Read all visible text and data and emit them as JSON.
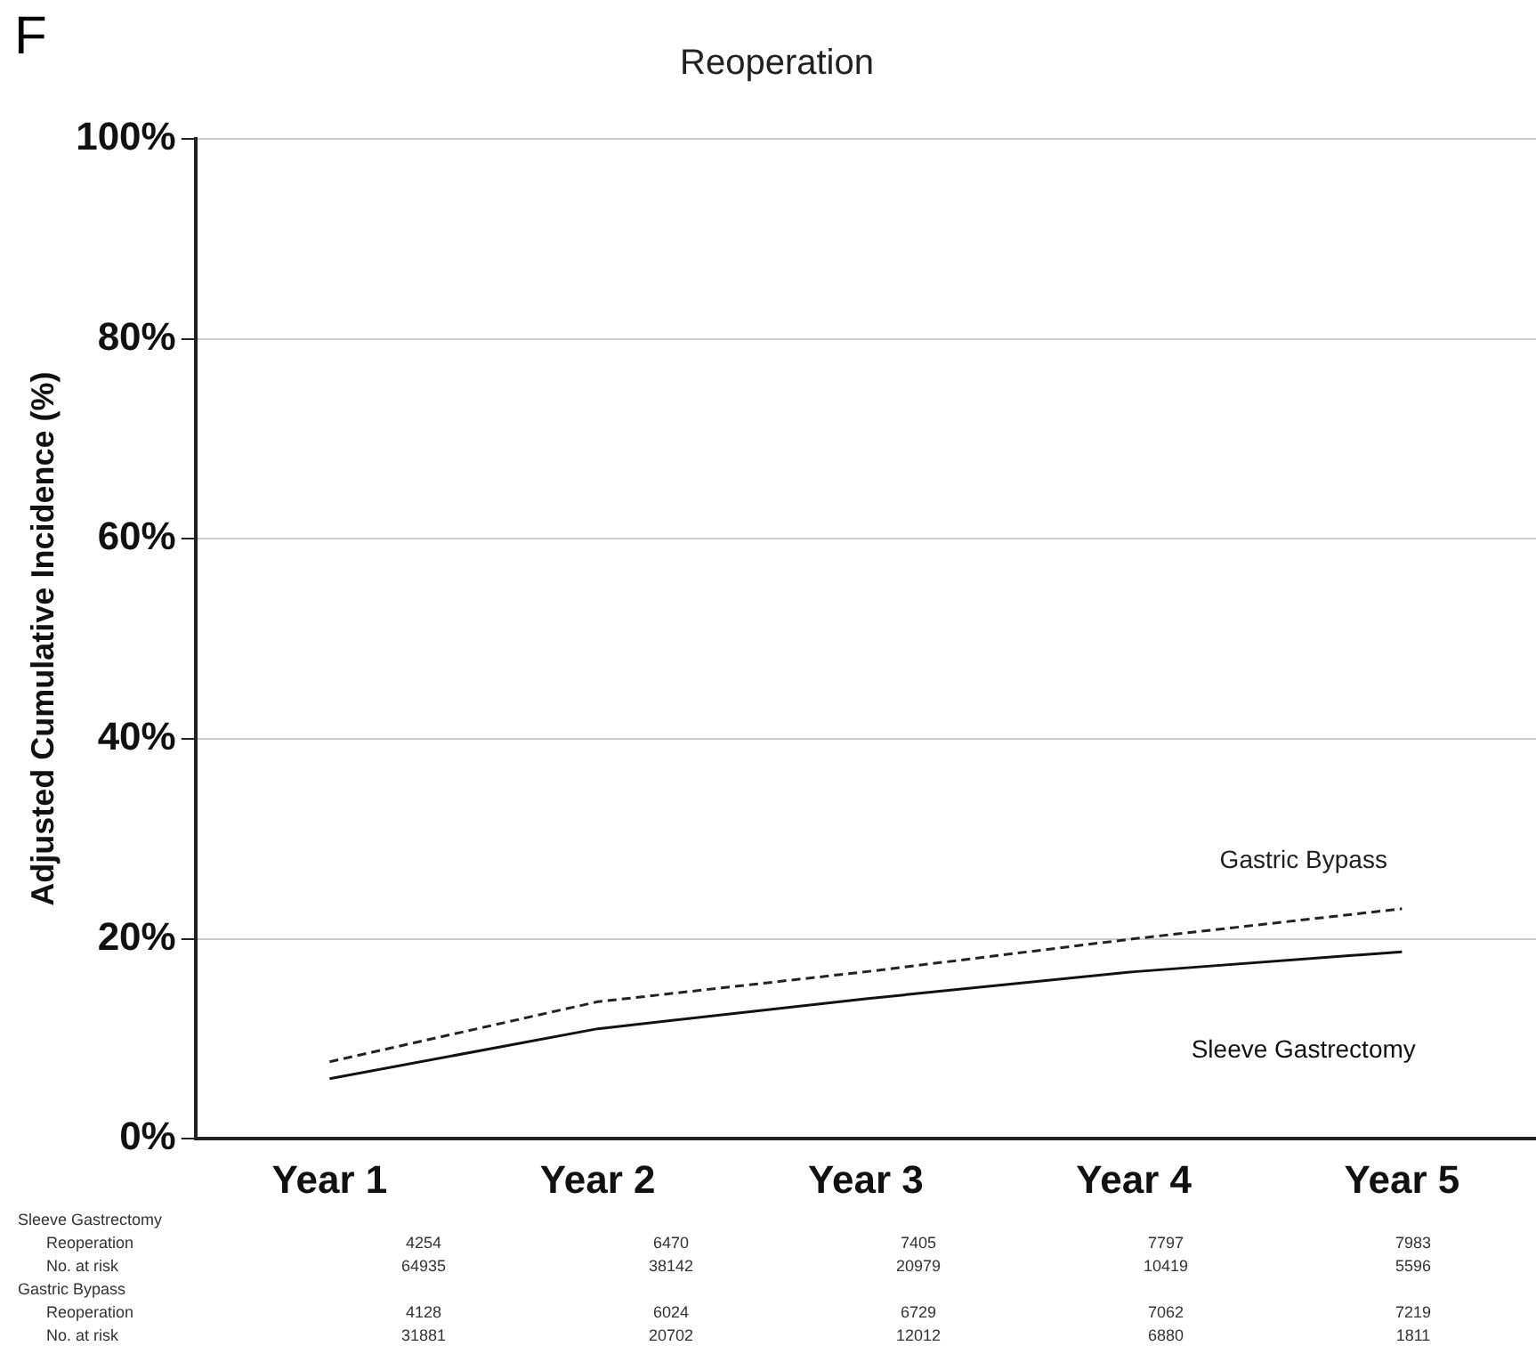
{
  "chart_data": {
    "type": "line",
    "title": "Reoperation",
    "ylabel": "Adjusted Cumulative Incidence (%)",
    "categories": [
      "Year 1",
      "Year 2",
      "Year 3",
      "Year 4",
      "Year 5"
    ],
    "series": [
      {
        "name": "Gastric Bypass",
        "color": "#222222",
        "line_style": "dashed",
        "values": [
          7.7,
          13.7,
          16.7,
          20,
          23
        ]
      },
      {
        "name": "Sleeve Gastrectomy",
        "color": "#111111",
        "line_style": "solid",
        "values": [
          6,
          11,
          14,
          16.7,
          18.7
        ]
      }
    ],
    "ylim": [
      0,
      100
    ],
    "yticks": [
      {
        "value": 0,
        "label": "0%"
      },
      {
        "value": 20,
        "label": "20%"
      },
      {
        "value": 40,
        "label": "40%"
      },
      {
        "value": 60,
        "label": "60%"
      },
      {
        "value": 80,
        "label": "80%"
      },
      {
        "value": 100,
        "label": "100%"
      }
    ],
    "grid": "y",
    "legend": false,
    "marker": "none",
    "annotations": [
      "F",
      "Sleeve Gastrectomy",
      "Reoperation\t4254\t6470\t7405\t7797\t7983",
      "No. at risk\t64935\t38142\t20979\t10419\t5596",
      "Gastric Bypass",
      "Reoperation\t4128\t6024\t6729\t7062\t7219",
      "No. at risk\t31881\t20702\t12012\t6880\t1811"
    ]
  }
}
